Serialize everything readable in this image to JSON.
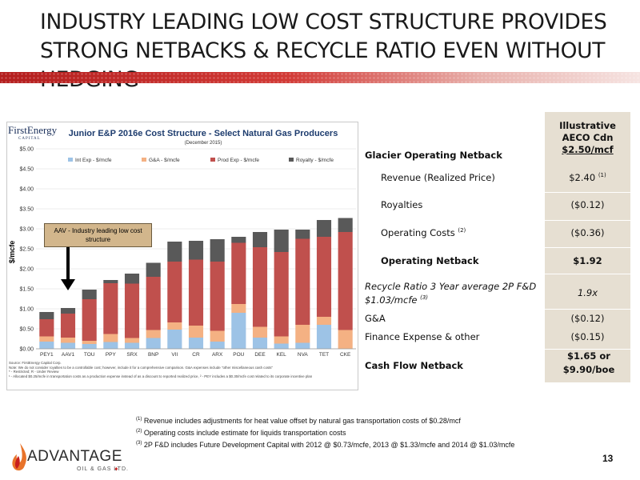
{
  "slide": {
    "title": "INDUSTRY LEADING LOW COST STRUCTURE PROVIDES STRONG NETBACKS & RECYCLE RATIO EVEN WITHOUT HEDGING",
    "page_number": "13"
  },
  "chart_logo": {
    "name": "FirstEnergy",
    "sub": "CAPITAL"
  },
  "chart_data": {
    "type": "bar",
    "stacked": true,
    "title": "Junior E&P 2016e Cost Structure - Select Natural Gas Producers",
    "subtitle": "(December 2015)",
    "ylabel": "$/mcfe",
    "ylim": [
      0,
      5
    ],
    "yticks": [
      "$0.00",
      "$0.50",
      "$1.00",
      "$1.50",
      "$2.00",
      "$2.50",
      "$3.00",
      "$3.50",
      "$4.00",
      "$4.50",
      "$5.00"
    ],
    "categories": [
      "PEY",
      "AAV",
      "TOU",
      "PPY",
      "SRX",
      "BNP",
      "VII",
      "CR",
      "ARX",
      "POU",
      "DEE",
      "KEL",
      "NVA",
      "TET",
      "CKE"
    ],
    "category_labels": [
      "PEY1",
      "AAV1",
      "TOU",
      "PPY",
      "SRX",
      "BNP",
      "VII",
      "CR",
      "ARX",
      "POU",
      "DEE",
      "KEL",
      "NVA",
      "TET",
      "CKE"
    ],
    "series": [
      {
        "name": "Int Exp - $/mcfe",
        "color": "#9dc3e6",
        "values": [
          0.18,
          0.15,
          0.12,
          0.17,
          0.15,
          0.27,
          0.48,
          0.28,
          0.18,
          0.9,
          0.28,
          0.13,
          0.15,
          0.6,
          0.0
        ]
      },
      {
        "name": "G&A - $/mcfe",
        "color": "#f4b183",
        "values": [
          0.13,
          0.13,
          0.08,
          0.2,
          0.12,
          0.2,
          0.18,
          0.3,
          0.27,
          0.22,
          0.27,
          0.18,
          0.45,
          0.2,
          0.47
        ]
      },
      {
        "name": "Prod Exp - $/mcfe",
        "color": "#c0504d",
        "values": [
          0.43,
          0.6,
          1.04,
          1.27,
          1.36,
          1.33,
          1.52,
          1.65,
          1.73,
          1.53,
          1.99,
          2.11,
          2.15,
          2.0,
          2.45
        ]
      },
      {
        "name": "Royalty - $/mcfe",
        "color": "#595959",
        "values": [
          0.18,
          0.14,
          0.24,
          0.08,
          0.25,
          0.35,
          0.5,
          0.47,
          0.56,
          0.15,
          0.38,
          0.56,
          0.23,
          0.42,
          0.35
        ]
      }
    ],
    "grid": true,
    "legend_position": "top"
  },
  "chart_notes": {
    "line1": "Source: FirstEnergy Capital Corp.",
    "line2": "Note: We do not consider royalties to be a controllable cost; however, include it for a comprehensive comparison. G&A expenses include \"other miscellaneous cash costs\"",
    "line3": "* - Restricted; R - Under Review",
    "line4": "¹ - Allocated $0.25/mcfe in transportation costs as a production expense instead of as a discount to reported realized price, ² - PEY includes a $0.30/mcfe cost related to its corporate incentive plan"
  },
  "callout": {
    "text": "AAV - Industry leading low cost structure"
  },
  "netback_table": {
    "header_line1": "Illustrative",
    "header_line2": "AECO Cdn",
    "header_line3": "$2.50/mcf",
    "rows": [
      {
        "label": "Glacier Operating Netback",
        "value": ""
      },
      {
        "label": "Revenue (Realized Price)",
        "value": "$2.40",
        "sup": "(1)"
      },
      {
        "label": "Royalties",
        "value": "($0.12)"
      },
      {
        "label": "Operating Costs",
        "label_sup": "(2)",
        "value": "($0.36)"
      },
      {
        "label": "Operating Netback",
        "value": "$1.92"
      },
      {
        "label": "Recycle Ratio 3 Year average 2P F&D $1.03/mcfe",
        "label_sup": "(3)",
        "value": "1.9x"
      },
      {
        "label": "G&A",
        "value": "($0.12)"
      },
      {
        "label": "Finance Expense & other",
        "value": "($0.15)"
      },
      {
        "label": "Cash Flow Netback",
        "value": "$1.65 or $9.90/boe"
      }
    ]
  },
  "footnotes": [
    {
      "num": "(1)",
      "text": "Revenue includes adjustments for heat value offset by natural gas transportation costs of $0.28/mcf"
    },
    {
      "num": "(2)",
      "text": "Operating costs include estimate for liquids transportation costs"
    },
    {
      "num": "(3)",
      "text": "2P F&D includes Future Development Capital with 2012 @ $0.73/mcfe, 2013 @ $1.33/mcfe and 2014 @ $1.03/mcfe"
    }
  ],
  "company_logo": {
    "name": "ADVANTAGE",
    "sub": "OIL & GAS LTD."
  },
  "colors": {
    "brand_red": "#c81e1e",
    "table_shade": "#e6dfd2",
    "callout_fill": "#d2b68c"
  }
}
